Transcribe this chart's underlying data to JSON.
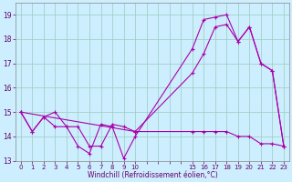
{
  "xlabel": "Windchill (Refroidissement éolien,°C)",
  "bg_color": "#cceeff",
  "grid_color": "#99ccbb",
  "line_color": "#aa00aa",
  "ylim": [
    13,
    19.5
  ],
  "yticks": [
    13,
    14,
    15,
    16,
    17,
    18,
    19
  ],
  "xlabels": [
    "0",
    "1",
    "2",
    "3",
    "4",
    "5",
    "6",
    "7",
    "8",
    "9",
    "10",
    "",
    "",
    "",
    "",
    "15",
    "16",
    "17",
    "18",
    "19",
    "20",
    "21",
    "22",
    "23"
  ],
  "line1_pos": [
    0,
    1,
    2,
    3,
    4,
    5,
    6,
    7,
    8,
    9,
    10,
    15,
    16,
    17,
    18,
    19,
    20,
    21,
    22,
    23
  ],
  "line1_y": [
    15.0,
    14.2,
    14.8,
    14.4,
    14.4,
    13.6,
    13.3,
    14.5,
    14.4,
    13.1,
    14.0,
    17.6,
    18.8,
    18.9,
    19.0,
    17.9,
    18.5,
    17.0,
    16.7,
    13.6
  ],
  "line2_pos": [
    0,
    1,
    2,
    3,
    4,
    5,
    6,
    7,
    8,
    9,
    10,
    15,
    16,
    17,
    18,
    19,
    20,
    21,
    22,
    23
  ],
  "line2_y": [
    15.0,
    14.2,
    14.8,
    15.0,
    14.4,
    14.4,
    13.6,
    13.6,
    14.5,
    14.4,
    14.2,
    16.6,
    17.4,
    18.5,
    18.6,
    17.9,
    18.5,
    17.0,
    16.7,
    13.6
  ],
  "line3_pos": [
    0,
    10,
    15,
    16,
    17,
    18,
    19,
    20,
    21,
    22,
    23
  ],
  "line3_y": [
    15.0,
    14.2,
    14.2,
    14.2,
    14.2,
    14.2,
    14.0,
    14.0,
    13.7,
    13.7,
    13.6
  ]
}
